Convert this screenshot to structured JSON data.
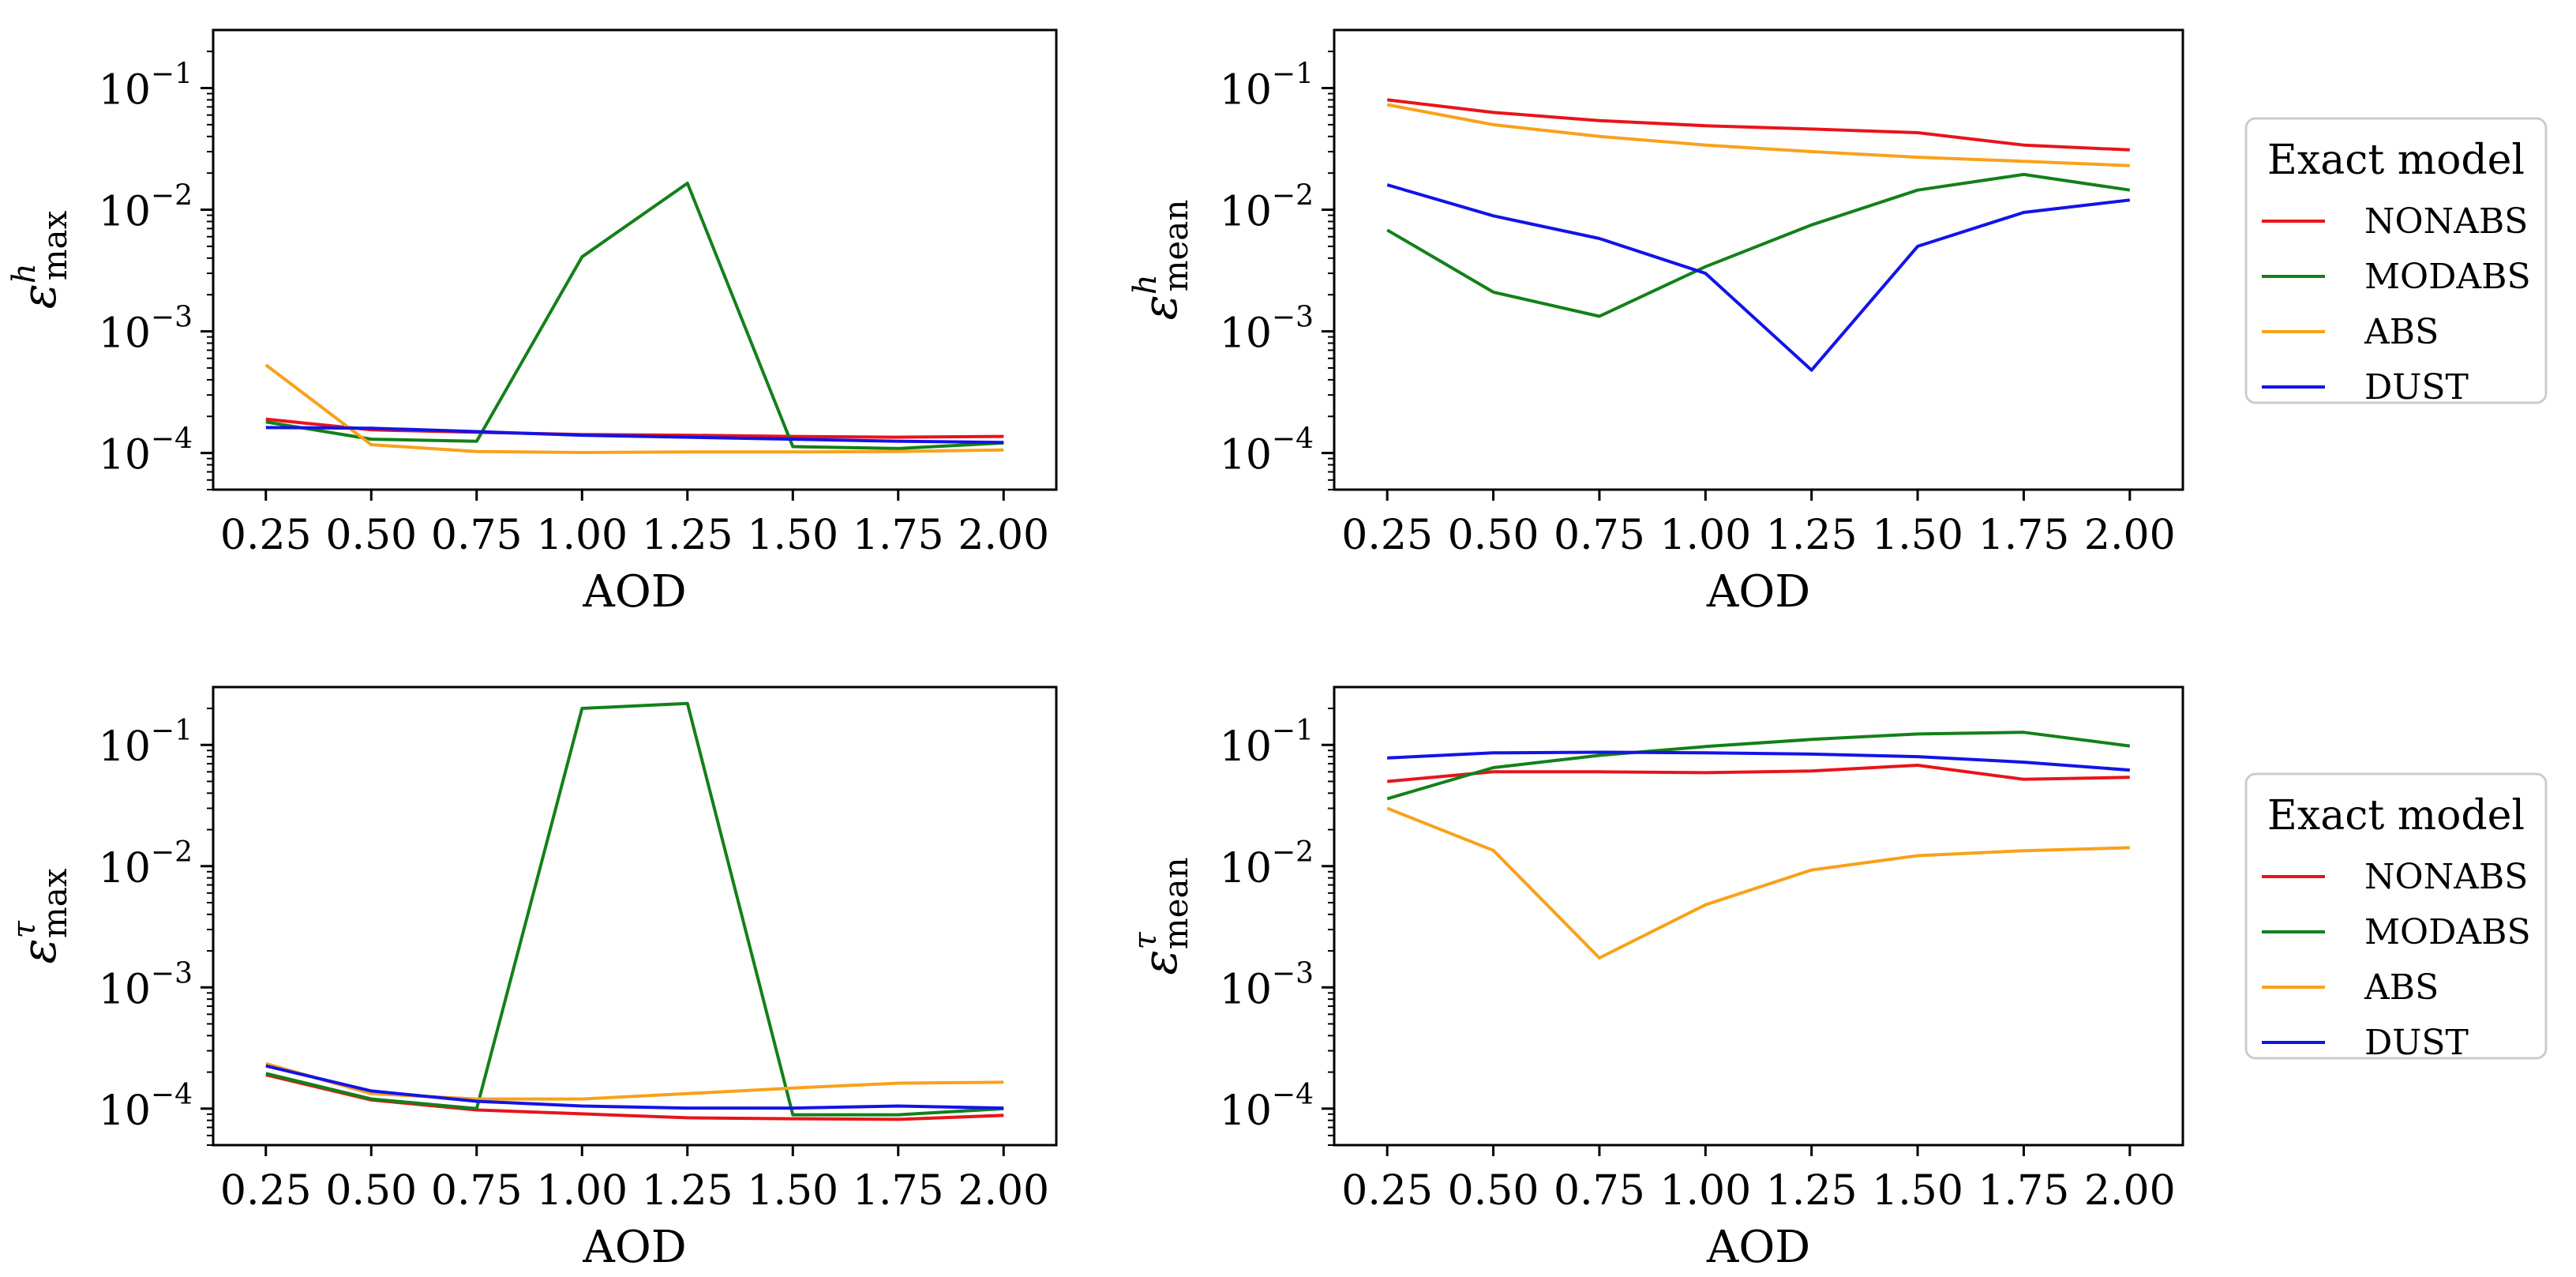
{
  "chart_data": [
    {
      "id": "top-left",
      "type": "line",
      "xlabel": "AOD",
      "ylabel": {
        "symbol": "ε",
        "sup": "h",
        "sub": "max"
      },
      "yscale": "log",
      "ylim": [
        5e-05,
        0.3
      ],
      "xlim": [
        0.125,
        2.125
      ],
      "x": [
        0.25,
        0.5,
        0.75,
        1.0,
        1.25,
        1.5,
        1.75,
        2.0
      ],
      "series": [
        {
          "name": "NONABS",
          "color": "#e8141b",
          "values": [
            0.00019,
            0.000155,
            0.000148,
            0.000142,
            0.00014,
            0.000137,
            0.000135,
            0.000137
          ]
        },
        {
          "name": "MODABS",
          "color": "#13801a",
          "values": [
            0.00018,
            0.00013,
            0.000125,
            0.0041,
            0.0165,
            0.000113,
            0.000109,
            0.000121
          ]
        },
        {
          "name": "ABS",
          "color": "#f9a11b",
          "values": [
            0.00053,
            0.000117,
            0.000103,
            0.000101,
            0.000102,
            0.000102,
            0.000103,
            0.000106
          ]
        },
        {
          "name": "DUST",
          "color": "#1313e8",
          "values": [
            0.000162,
            0.00016,
            0.00015,
            0.00014,
            0.000135,
            0.00013,
            0.000125,
            0.000122
          ]
        }
      ]
    },
    {
      "id": "top-right",
      "type": "line",
      "xlabel": "AOD",
      "ylabel": {
        "symbol": "ε",
        "sup": "h",
        "sub": "mean"
      },
      "yscale": "log",
      "ylim": [
        5e-05,
        0.3
      ],
      "xlim": [
        0.125,
        2.125
      ],
      "x": [
        0.25,
        0.5,
        0.75,
        1.0,
        1.25,
        1.5,
        1.75,
        2.0
      ],
      "series": [
        {
          "name": "NONABS",
          "color": "#e8141b",
          "values": [
            0.08,
            0.063,
            0.054,
            0.049,
            0.046,
            0.043,
            0.034,
            0.031
          ]
        },
        {
          "name": "MODABS",
          "color": "#13801a",
          "values": [
            0.0068,
            0.0021,
            0.00133,
            0.0034,
            0.0075,
            0.0145,
            0.0195,
            0.0145
          ]
        },
        {
          "name": "ABS",
          "color": "#f9a11b",
          "values": [
            0.073,
            0.05,
            0.04,
            0.034,
            0.03,
            0.027,
            0.025,
            0.023
          ]
        },
        {
          "name": "DUST",
          "color": "#1313e8",
          "values": [
            0.016,
            0.0089,
            0.0058,
            0.003,
            0.00048,
            0.005,
            0.0095,
            0.012
          ]
        }
      ]
    },
    {
      "id": "bottom-left",
      "type": "line",
      "xlabel": "AOD",
      "ylabel": {
        "symbol": "ε",
        "sup": "τ",
        "sub": "max"
      },
      "yscale": "log",
      "ylim": [
        5e-05,
        0.3
      ],
      "xlim": [
        0.125,
        2.125
      ],
      "x": [
        0.25,
        0.5,
        0.75,
        1.0,
        1.25,
        1.5,
        1.75,
        2.0
      ],
      "series": [
        {
          "name": "NONABS",
          "color": "#e8141b",
          "values": [
            0.00019,
            0.000118,
            9.75e-05,
            9.05e-05,
            8.4e-05,
            8.25e-05,
            8.15e-05,
            8.8e-05
          ]
        },
        {
          "name": "MODABS",
          "color": "#13801a",
          "values": [
            0.000195,
            0.00012,
            0.0001,
            0.2,
            0.22,
            8.9e-05,
            8.9e-05,
            0.0001
          ]
        },
        {
          "name": "ABS",
          "color": "#f9a11b",
          "values": [
            0.000235,
            0.000133,
            0.00012,
            0.00012,
            0.000133,
            0.000148,
            0.000162,
            0.000165
          ]
        },
        {
          "name": "DUST",
          "color": "#1313e8",
          "values": [
            0.000225,
            0.00014,
            0.000115,
            0.000105,
            0.000101,
            0.000101,
            0.000105,
            0.000101
          ]
        }
      ]
    },
    {
      "id": "bottom-right",
      "type": "line",
      "xlabel": "AOD",
      "ylabel": {
        "symbol": "ε",
        "sup": "τ",
        "sub": "mean"
      },
      "yscale": "log",
      "ylim": [
        5e-05,
        0.3
      ],
      "xlim": [
        0.125,
        2.125
      ],
      "x": [
        0.25,
        0.5,
        0.75,
        1.0,
        1.25,
        1.5,
        1.75,
        2.0
      ],
      "series": [
        {
          "name": "NONABS",
          "color": "#e8141b",
          "values": [
            0.05,
            0.06,
            0.06,
            0.059,
            0.061,
            0.068,
            0.052,
            0.054
          ]
        },
        {
          "name": "MODABS",
          "color": "#13801a",
          "values": [
            0.036,
            0.065,
            0.082,
            0.097,
            0.111,
            0.123,
            0.127,
            0.098
          ]
        },
        {
          "name": "ABS",
          "color": "#f9a11b",
          "values": [
            0.03,
            0.0135,
            0.00175,
            0.0048,
            0.0093,
            0.0122,
            0.0134,
            0.0142
          ]
        },
        {
          "name": "DUST",
          "color": "#1313e8",
          "values": [
            0.078,
            0.086,
            0.087,
            0.086,
            0.084,
            0.08,
            0.072,
            0.062
          ]
        }
      ]
    }
  ],
  "x_tick_labels": [
    "0.25",
    "0.50",
    "0.75",
    "1.00",
    "1.25",
    "1.50",
    "1.75",
    "2.00"
  ],
  "y_ticks": [
    {
      "value": 0.1,
      "base": "10",
      "exp": "−1"
    },
    {
      "value": 0.01,
      "base": "10",
      "exp": "−2"
    },
    {
      "value": 0.001,
      "base": "10",
      "exp": "−3"
    },
    {
      "value": 0.0001,
      "base": "10",
      "exp": "−4"
    }
  ],
  "legends": [
    {
      "title": "Exact model",
      "items": [
        "NONABS",
        "MODABS",
        "ABS",
        "DUST"
      ]
    },
    {
      "title": "Exact model",
      "items": [
        "NONABS",
        "MODABS",
        "ABS",
        "DUST"
      ]
    }
  ],
  "legend_colors": [
    "#e8141b",
    "#13801a",
    "#f9a11b",
    "#1313e8"
  ]
}
